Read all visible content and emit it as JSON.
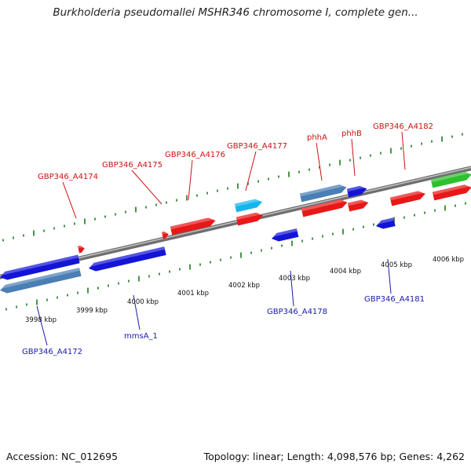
{
  "title": "Burkholderia pseudomallei MSHR346 chromosome I, complete gen...",
  "footer": {
    "accession": "Accession: NC_012695",
    "stats": "Topology: linear; Length: 4,098,576 bp; Genes: 4,262"
  },
  "colors": {
    "forward_gene": "#e81818",
    "reverse_gene": "#1414d8",
    "steel_gene": "#4a7fb5",
    "cyan_gene": "#18b4ec",
    "green_gene": "#2ec02e",
    "ruler_tick": "#1b7a1b",
    "backbone": "#808080",
    "forward_label": "#cc1111",
    "reverse_label": "#1a1aaa"
  },
  "position_labels": [
    "3998 kbp",
    "3999 kbp",
    "4000 kbp",
    "4001 kbp",
    "4002 kbp",
    "4003 kbp",
    "4004 kbp",
    "4005 kbp",
    "4006 kbp"
  ],
  "forward_gene_labels": [
    "GBP346_A4174",
    "GBP346_A4175",
    "GBP346_A4176",
    "GBP346_A4177",
    "phhA",
    "phhB",
    "GBP346_A4182"
  ],
  "reverse_gene_labels": [
    "GBP346_A4172",
    "mmsA_1",
    "GBP346_A4178",
    "GBP346_A4181"
  ]
}
